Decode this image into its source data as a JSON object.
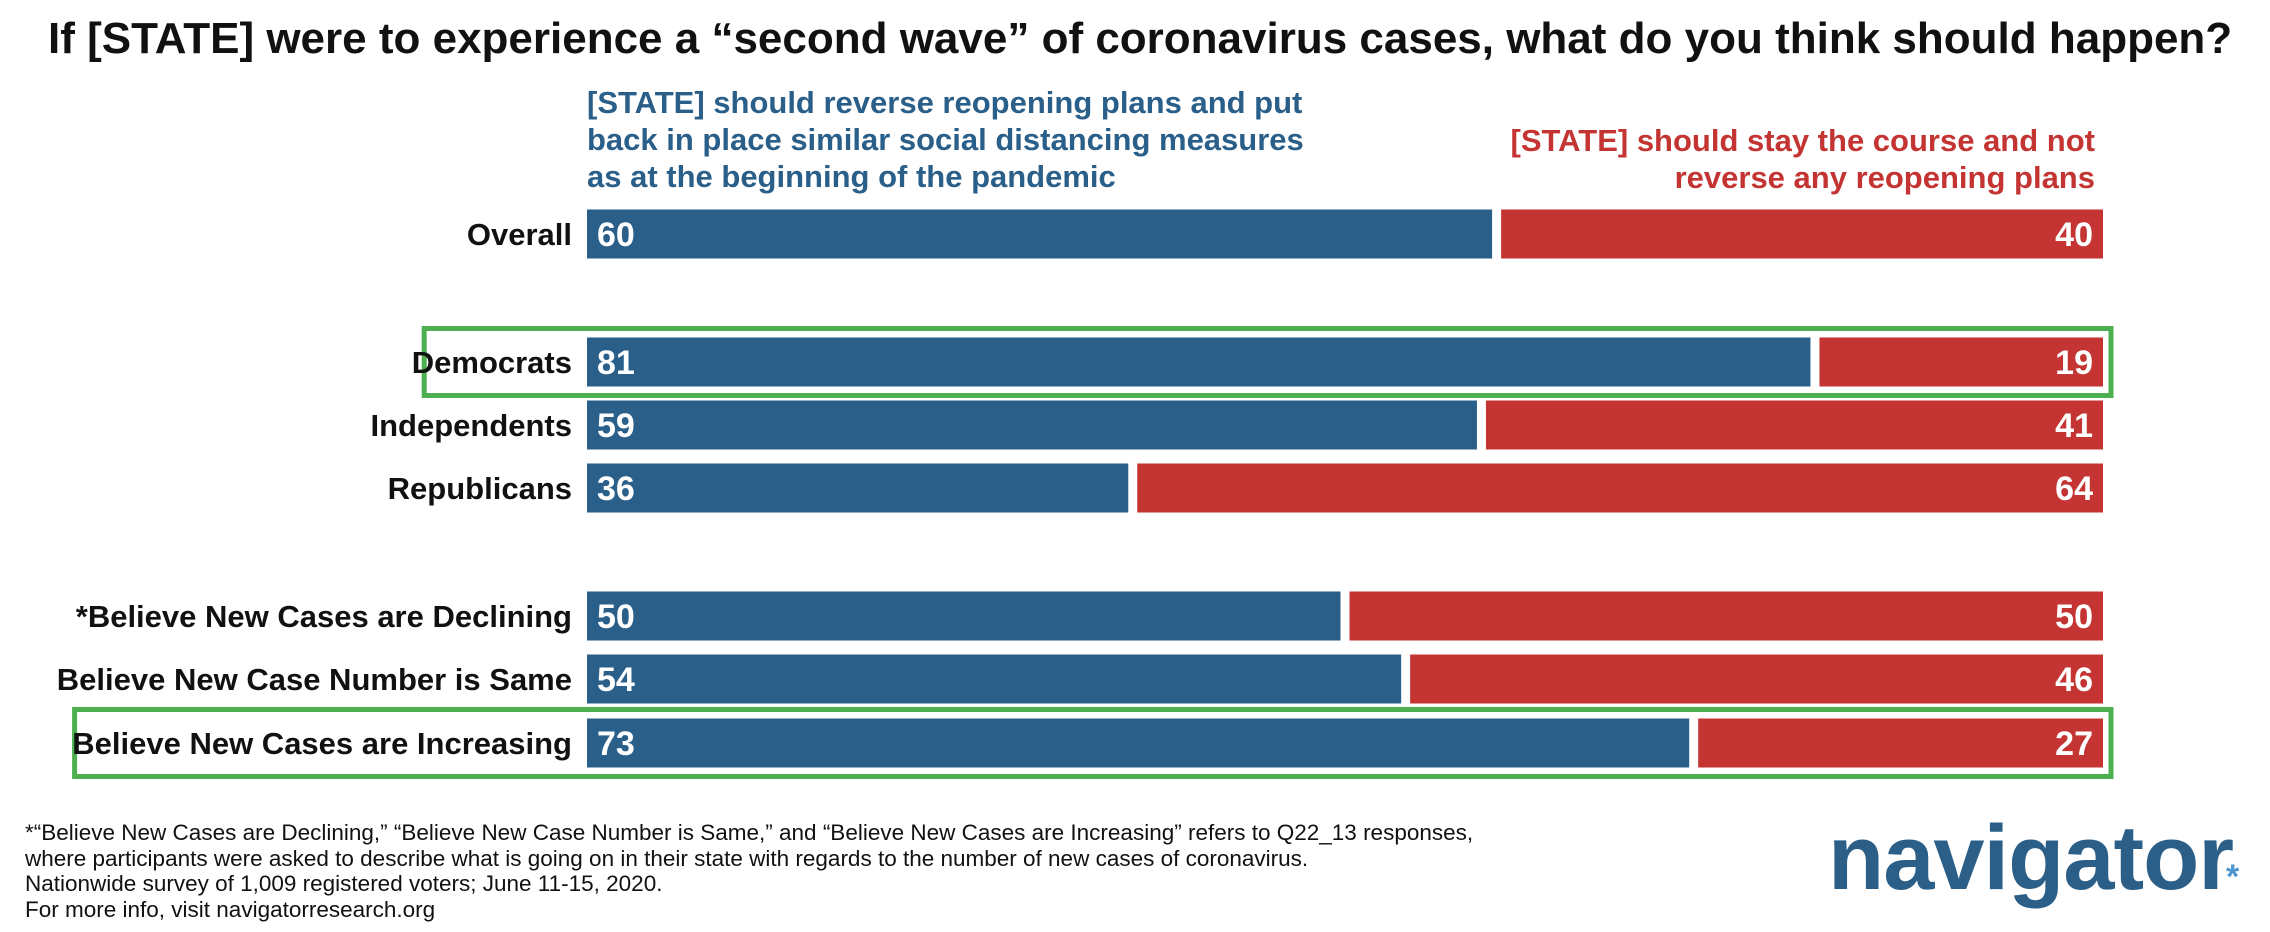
{
  "chart_data": {
    "type": "bar",
    "title": "If [STATE] were to experience a “second wave” of coronavirus cases, what do you think should happen?",
    "series": [
      {
        "name": "[STATE] should reverse reopening plans and put back in place similar social distancing measures as at the beginning of the pandemic",
        "color": "#2a5f8a"
      },
      {
        "name": "[STATE] should stay the course and not reverse any reopening plans",
        "color": "#c33432"
      }
    ],
    "categories": [
      "Overall",
      "Democrats",
      "Independents",
      "Republicans",
      "*Believe New Cases are Declining",
      "Believe New Case Number is Same",
      "Believe New Cases are Increasing"
    ],
    "reverse_values": [
      60,
      81,
      59,
      36,
      50,
      54,
      73
    ],
    "stay_values": [
      40,
      19,
      41,
      64,
      50,
      46,
      27
    ],
    "highlighted": [
      "Democrats",
      "Believe New Cases are Increasing"
    ],
    "highlight_color": "#4caf50",
    "xlim": [
      0,
      100
    ]
  },
  "legend": {
    "left_lines": [
      "[STATE] should reverse reopening plans and put",
      "back in place similar social distancing measures",
      "as at the beginning of the pandemic"
    ],
    "right_lines": [
      "[STATE] should stay the course and not",
      "reverse any reopening plans"
    ]
  },
  "footnote": {
    "lines": [
      "*“Believe New Cases are Declining,” “Believe New Case Number is Same,” and “Believe New Cases are Increasing” refers to Q22_13 responses,",
      "where participants were asked to describe what is going on in their state with regards to the number of new cases of coronavirus.",
      "Nationwide survey of 1,009 registered voters; June 11-15, 2020.",
      "For more info, visit navigatorresearch.org"
    ]
  },
  "logo": {
    "text": "navigator",
    "mark": "*",
    "color": "#2b5f88"
  }
}
